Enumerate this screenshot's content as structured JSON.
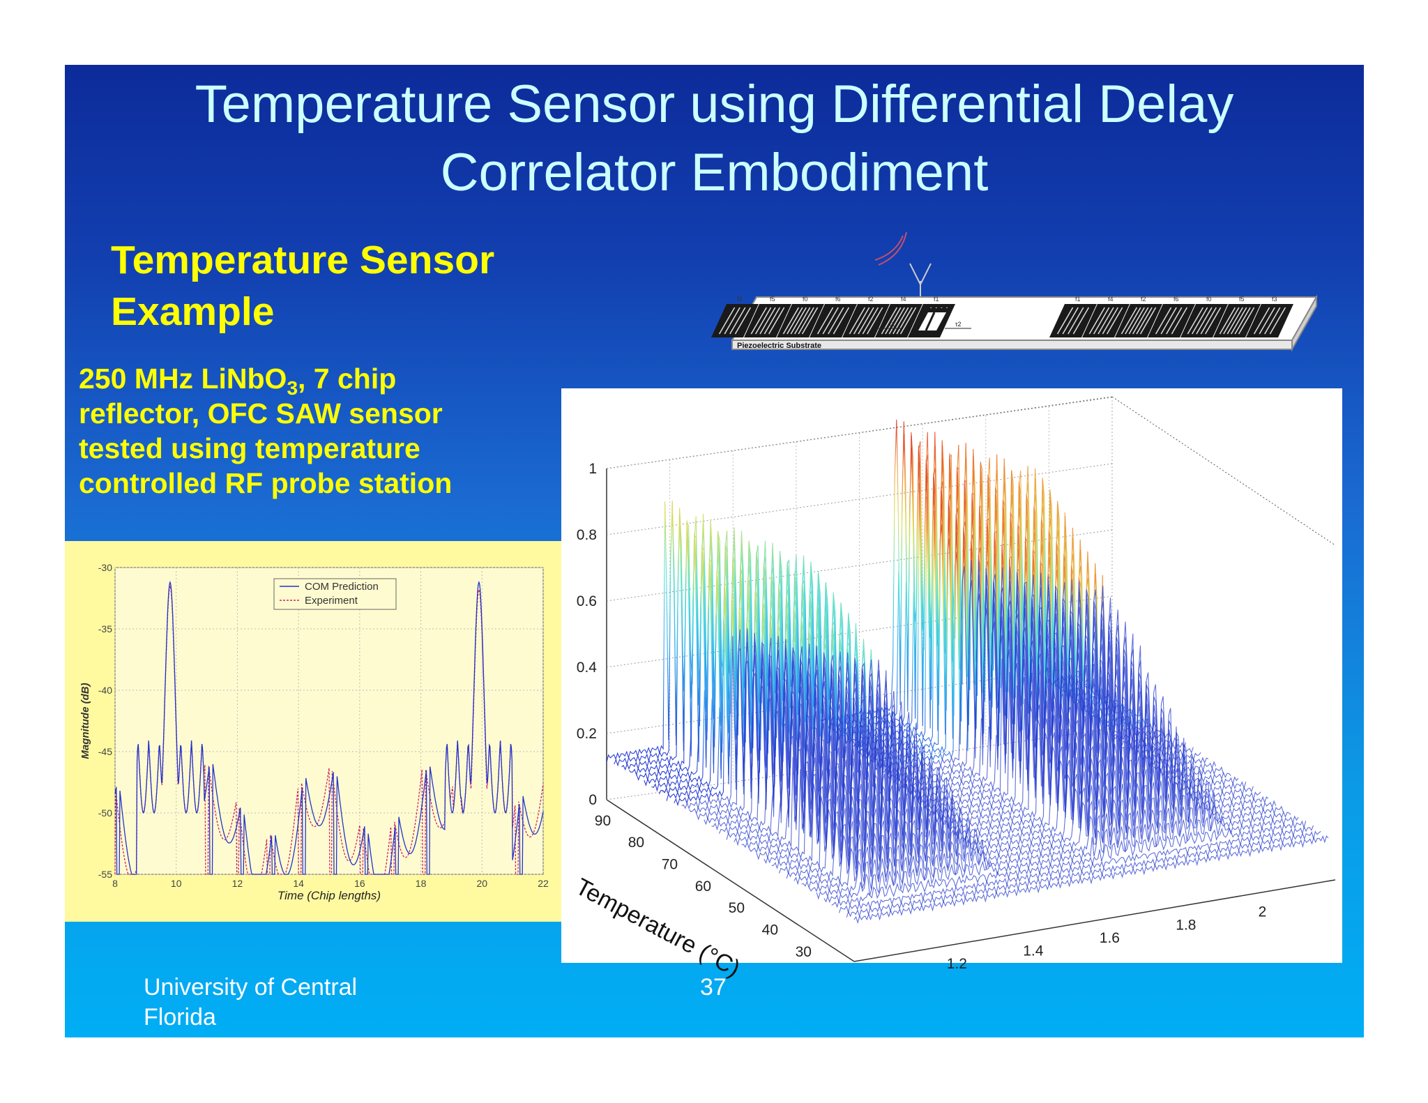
{
  "title_line1": "Temperature Sensor using Differential Delay",
  "title_line2": "Correlator Embodiment",
  "subhead_line1": "Temperature Sensor",
  "subhead_line2": "Example",
  "body": {
    "part1": "250 MHz LiNbO",
    "sub": "3",
    "part2": ", 7 chip",
    "line2": "reflector, OFC SAW sensor",
    "line3": "tested using temperature",
    "line4": "controlled RF probe station"
  },
  "device": {
    "substrate_label": "Piezoelectric Substrate",
    "left_labels": [
      "f3",
      "f5",
      "f0",
      "f6",
      "f2",
      "f4",
      "f1"
    ],
    "right_labels": [
      "f1",
      "f4",
      "f2",
      "f6",
      "f0",
      "f5",
      "f3"
    ],
    "tau1": "τ1",
    "tau2": "τ2"
  },
  "footer": {
    "org_line1": "University of Central",
    "org_line2": "Florida",
    "page_number": "37"
  },
  "colors": {
    "title": "#ccffff",
    "accent_yellow": "#ffff00",
    "left_chart_bg": "#fff9a0",
    "com_prediction": "#2233cc",
    "experiment": "#cc2266"
  },
  "chart_data": [
    {
      "type": "line",
      "xlabel": "Time (Chip lengths)",
      "ylabel": "Magnitude (dB)",
      "xlim": [
        8,
        22
      ],
      "ylim": [
        -55,
        -30
      ],
      "x_ticks": [
        8,
        10,
        12,
        14,
        16,
        18,
        20,
        22
      ],
      "y_ticks": [
        -30,
        -35,
        -40,
        -45,
        -50,
        -55
      ],
      "grid": true,
      "legend_position": "top-right",
      "series": [
        {
          "name": "COM Prediction",
          "peaks": [
            {
              "x": 9.8,
              "y": -31.2
            },
            {
              "x": 19.9,
              "y": -31.2
            }
          ]
        },
        {
          "name": "Experiment",
          "peaks": [
            {
              "x": 9.8,
              "y": -31.5
            },
            {
              "x": 19.9,
              "y": -31.8
            }
          ]
        }
      ]
    },
    {
      "type": "surface-3d",
      "x_axis_label": "Temperature (°C)",
      "temperature_ticks": [
        "90",
        "80",
        "70",
        "60",
        "50",
        "40",
        "30"
      ],
      "time_ticks": [
        "1.2",
        "1.4",
        "1.6",
        "1.8",
        "2"
      ],
      "z_ticks": [
        "0",
        "0.2",
        "0.4",
        "0.6",
        "0.8",
        "1"
      ],
      "zlim": [
        0,
        1
      ],
      "grid": true
    }
  ]
}
